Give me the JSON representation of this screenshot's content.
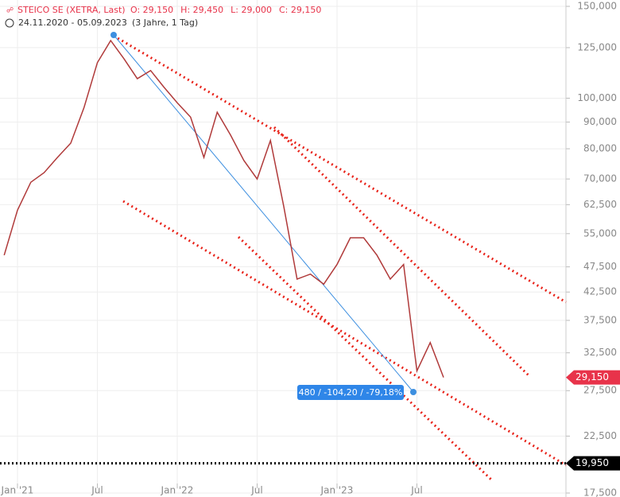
{
  "chart_data": {
    "type": "line",
    "log_scale": true,
    "grid": true,
    "title": "STEICO SE (XETRA, Last)",
    "ohlc": [
      "O: 29,150",
      "H: 29,450",
      "L: 29,000",
      "C: 29,150"
    ],
    "range": "24.11.2020 - 05.09.2023",
    "period": "(3 Jahre, 1 Tag)",
    "x": [
      "2020-12",
      "2021-01",
      "2021-02",
      "2021-03",
      "2021-04",
      "2021-05",
      "2021-06",
      "2021-07",
      "2021-08",
      "2021-09",
      "2021-10",
      "2021-11",
      "2021-12",
      "2022-01",
      "2022-02",
      "2022-03",
      "2022-04",
      "2022-05",
      "2022-06",
      "2022-07",
      "2022-08",
      "2022-09",
      "2022-10",
      "2022-11",
      "2022-12",
      "2023-01",
      "2023-02",
      "2023-03",
      "2023-04",
      "2023-05",
      "2023-06",
      "2023-07",
      "2023-08",
      "2023-09"
    ],
    "series": [
      {
        "name": "STEICO SE",
        "color": "#b03a3a",
        "values": [
          50,
          61,
          69,
          72,
          77,
          82,
          96,
          117,
          129,
          119,
          109,
          113,
          105,
          98,
          92,
          77,
          94,
          85,
          76,
          70,
          83,
          62,
          45,
          46,
          44,
          48,
          54,
          54,
          50,
          45,
          48,
          30,
          34,
          29.15
        ]
      }
    ],
    "last": {
      "value": 29.15,
      "label": "29,150",
      "color": "#e8334a"
    },
    "level": {
      "value": 19.95,
      "label": "19,950",
      "color": "#000000"
    },
    "measure": "480 / -104,20 / -79,18%",
    "xlim": [
      "2020-12",
      "2024-06"
    ],
    "xticks": [
      {
        "value": "2021-01",
        "label": "Jan '21"
      },
      {
        "value": "2021-07",
        "label": "Jul"
      },
      {
        "value": "2022-01",
        "label": "Jan '22"
      },
      {
        "value": "2022-07",
        "label": "Jul"
      },
      {
        "value": "2023-01",
        "label": "Jan '23"
      },
      {
        "value": "2023-07",
        "label": "Jul"
      }
    ],
    "ylim": [
      17.5,
      150
    ],
    "yticks": [
      {
        "value": 17.5,
        "label": "17,500"
      },
      {
        "value": 22.5,
        "label": "22,500"
      },
      {
        "value": 27.5,
        "label": "27,500"
      },
      {
        "value": 32.5,
        "label": "32,500"
      },
      {
        "value": 37.5,
        "label": "37,500"
      },
      {
        "value": 42.5,
        "label": "42,500"
      },
      {
        "value": 47.5,
        "label": "47,500"
      },
      {
        "value": 55,
        "label": "55,000"
      },
      {
        "value": 62.5,
        "label": "62,500"
      },
      {
        "value": 70,
        "label": "70,000"
      },
      {
        "value": 80,
        "label": "80,000"
      },
      {
        "value": 90,
        "label": "90,000"
      },
      {
        "value": 100,
        "label": "100,000"
      },
      {
        "value": 125,
        "label": "125,000"
      },
      {
        "value": 150,
        "label": "150,000"
      }
    ]
  }
}
